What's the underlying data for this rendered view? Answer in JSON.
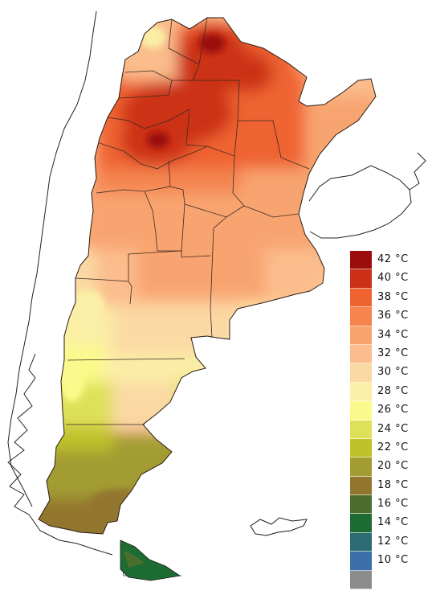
{
  "legend": {
    "items": [
      {
        "label": "42 °C",
        "color": "#9b0d0a"
      },
      {
        "label": "40 °C",
        "color": "#cc3016"
      },
      {
        "label": "38 °C",
        "color": "#ef6330"
      },
      {
        "label": "36 °C",
        "color": "#f5844f"
      },
      {
        "label": "34 °C",
        "color": "#f8a46f"
      },
      {
        "label": "32 °C",
        "color": "#fbbd8d"
      },
      {
        "label": "30 °C",
        "color": "#fbd9a4"
      },
      {
        "label": "28 °C",
        "color": "#fbeea6"
      },
      {
        "label": "26 °C",
        "color": "#fafa8c"
      },
      {
        "label": "24 °C",
        "color": "#dfe05a"
      },
      {
        "label": "22 °C",
        "color": "#c0c22b"
      },
      {
        "label": "20 °C",
        "color": "#a39c32"
      },
      {
        "label": "18 °C",
        "color": "#93762e"
      },
      {
        "label": "16 °C",
        "color": "#4c6e2c"
      },
      {
        "label": "14 °C",
        "color": "#1d6c33"
      },
      {
        "label": "12 °C",
        "color": "#2d6c74"
      },
      {
        "label": "10 °C",
        "color": "#3c6fa7"
      },
      {
        "label": "",
        "color": "#8c8c8c"
      }
    ]
  }
}
